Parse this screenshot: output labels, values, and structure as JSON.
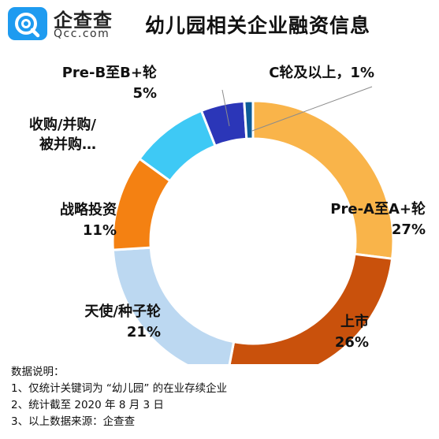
{
  "brand": {
    "name_cn": "企查查",
    "name_en": "Qcc.com",
    "logo_color": "#1e9bf0"
  },
  "title": "幼儿园相关企业融资信息",
  "chart_data": {
    "type": "pie",
    "variant": "donut",
    "title": "幼儿园相关企业融资信息",
    "start_angle_deg": 0,
    "direction": "clockwise",
    "slices": [
      {
        "label": "Pre-A至A+轮",
        "percent_label": "27%",
        "value": 27,
        "color": "#f9b44a"
      },
      {
        "label": "上市",
        "percent_label": "26%",
        "value": 26,
        "color": "#c9510c"
      },
      {
        "label": "天使/种子轮",
        "percent_label": "21%",
        "value": 21,
        "color": "#bcd8f1"
      },
      {
        "label": "战略投资",
        "percent_label": "11%",
        "value": 11,
        "color": "#f48112"
      },
      {
        "label": "收购/并购/被并购…",
        "percent_label": "",
        "value": 9,
        "color": "#3ec9f5"
      },
      {
        "label": "Pre-B至B+轮",
        "percent_label": "5%",
        "value": 5,
        "color": "#2b36b8"
      },
      {
        "label": "C轮及以上",
        "percent_label": "1%",
        "value": 1,
        "color": "#0c5b99"
      }
    ]
  },
  "notes": {
    "heading": "数据说明：",
    "items": [
      "1、仅统计关键词为 “幼儿园” 的在业存续企业",
      "2、统计截至 2020 年 8 月 3 日",
      "3、以上数据来源：企查查"
    ]
  }
}
